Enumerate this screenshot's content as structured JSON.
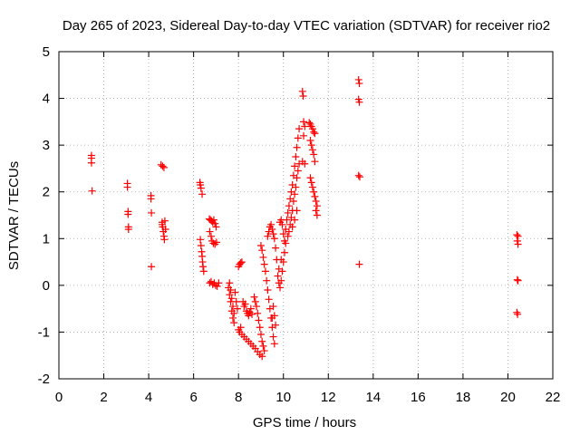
{
  "chart_data": {
    "type": "scatter",
    "title": "Day 265 of 2023, Sidereal Day-to-day VTEC variation (SDTVAR) for receiver rio2",
    "xlabel": "GPS time / hours",
    "ylabel": "SDTVAR / TECUs",
    "xlim": [
      0,
      22
    ],
    "ylim": [
      -2,
      5
    ],
    "xticks": [
      "0",
      "2",
      "4",
      "6",
      "8",
      "10",
      "12",
      "14",
      "16",
      "18",
      "20",
      "22"
    ],
    "yticks": [
      "-2",
      "-1",
      "0",
      "1",
      "2",
      "3",
      "4",
      "5"
    ],
    "grid": true,
    "marker": "+",
    "color": "#ff0000",
    "series": [
      {
        "name": "SDTVAR",
        "points": [
          [
            1.45,
            2.78
          ],
          [
            1.45,
            2.72
          ],
          [
            1.45,
            2.62
          ],
          [
            1.48,
            2.02
          ],
          [
            3.05,
            2.18
          ],
          [
            3.05,
            2.1
          ],
          [
            3.08,
            1.58
          ],
          [
            3.08,
            1.52
          ],
          [
            3.1,
            1.25
          ],
          [
            3.1,
            1.2
          ],
          [
            4.1,
            1.92
          ],
          [
            4.1,
            1.85
          ],
          [
            4.12,
            1.55
          ],
          [
            4.12,
            0.4
          ],
          [
            4.55,
            2.58
          ],
          [
            4.62,
            2.55
          ],
          [
            4.68,
            2.52
          ],
          [
            4.6,
            1.35
          ],
          [
            4.62,
            1.25
          ],
          [
            4.65,
            1.15
          ],
          [
            4.68,
            1.05
          ],
          [
            4.7,
            0.98
          ],
          [
            4.6,
            1.3
          ],
          [
            4.72,
            1.38
          ],
          [
            4.75,
            1.2
          ],
          [
            6.28,
            2.2
          ],
          [
            6.3,
            2.15
          ],
          [
            6.33,
            2.08
          ],
          [
            6.38,
            1.95
          ],
          [
            6.3,
            0.98
          ],
          [
            6.33,
            0.85
          ],
          [
            6.36,
            0.72
          ],
          [
            6.38,
            0.62
          ],
          [
            6.4,
            0.5
          ],
          [
            6.42,
            0.4
          ],
          [
            6.45,
            0.3
          ],
          [
            6.7,
            1.42
          ],
          [
            6.75,
            1.4
          ],
          [
            6.8,
            1.38
          ],
          [
            6.85,
            1.35
          ],
          [
            6.9,
            1.4
          ],
          [
            6.95,
            1.32
          ],
          [
            7.0,
            1.25
          ],
          [
            6.72,
            1.15
          ],
          [
            6.78,
            1.05
          ],
          [
            6.82,
            0.95
          ],
          [
            6.88,
            0.9
          ],
          [
            6.95,
            0.88
          ],
          [
            7.02,
            0.92
          ],
          [
            6.72,
            0.05
          ],
          [
            6.78,
            0.08
          ],
          [
            6.85,
            0.02
          ],
          [
            6.92,
            0.05
          ],
          [
            6.98,
            0.0
          ],
          [
            7.05,
            -0.02
          ],
          [
            7.12,
            0.05
          ],
          [
            7.55,
            -0.05
          ],
          [
            7.6,
            -0.2
          ],
          [
            7.65,
            -0.35
          ],
          [
            7.7,
            -0.55
          ],
          [
            7.75,
            -0.7
          ],
          [
            7.8,
            -0.8
          ],
          [
            7.6,
            0.05
          ],
          [
            7.65,
            -0.1
          ],
          [
            7.7,
            -0.28
          ],
          [
            7.75,
            -0.45
          ],
          [
            7.8,
            -0.6
          ],
          [
            7.85,
            -0.15
          ],
          [
            7.9,
            -0.35
          ],
          [
            7.95,
            -0.5
          ],
          [
            8.0,
            -0.95
          ],
          [
            8.05,
            -1.0
          ],
          [
            8.1,
            -0.9
          ],
          [
            8.0,
            0.4
          ],
          [
            8.05,
            0.45
          ],
          [
            8.1,
            0.48
          ],
          [
            8.15,
            0.5
          ],
          [
            8.2,
            -0.35
          ],
          [
            8.25,
            -0.45
          ],
          [
            8.3,
            -0.4
          ],
          [
            8.35,
            -0.55
          ],
          [
            8.4,
            -0.6
          ],
          [
            8.45,
            -0.65
          ],
          [
            8.5,
            -0.58
          ],
          [
            8.55,
            -0.5
          ],
          [
            8.6,
            -0.62
          ],
          [
            8.15,
            -1.05
          ],
          [
            8.25,
            -1.1
          ],
          [
            8.35,
            -1.15
          ],
          [
            8.45,
            -1.2
          ],
          [
            8.55,
            -1.25
          ],
          [
            8.65,
            -1.3
          ],
          [
            8.75,
            -1.35
          ],
          [
            8.85,
            -1.42
          ],
          [
            8.95,
            -1.48
          ],
          [
            9.05,
            -1.52
          ],
          [
            8.7,
            -0.25
          ],
          [
            8.75,
            -0.35
          ],
          [
            8.8,
            -0.45
          ],
          [
            8.85,
            -0.6
          ],
          [
            8.9,
            -0.75
          ],
          [
            8.95,
            -0.9
          ],
          [
            9.0,
            -1.05
          ],
          [
            9.05,
            -1.2
          ],
          [
            9.1,
            -1.3
          ],
          [
            9.15,
            -1.4
          ],
          [
            9.0,
            0.85
          ],
          [
            9.05,
            0.75
          ],
          [
            9.1,
            0.6
          ],
          [
            9.15,
            0.45
          ],
          [
            9.2,
            0.3
          ],
          [
            9.25,
            0.1
          ],
          [
            9.3,
            -0.1
          ],
          [
            9.35,
            -0.3
          ],
          [
            9.4,
            -0.5
          ],
          [
            9.45,
            -0.7
          ],
          [
            9.5,
            -0.9
          ],
          [
            9.55,
            -1.1
          ],
          [
            9.6,
            -1.25
          ],
          [
            9.3,
            1.05
          ],
          [
            9.35,
            1.15
          ],
          [
            9.4,
            1.25
          ],
          [
            9.45,
            1.3
          ],
          [
            9.5,
            1.2
          ],
          [
            9.55,
            1.1
          ],
          [
            9.6,
            1.0
          ],
          [
            9.65,
            0.8
          ],
          [
            9.7,
            0.55
          ],
          [
            9.6,
            -0.65
          ],
          [
            9.65,
            -0.85
          ],
          [
            9.55,
            -0.45
          ],
          [
            9.5,
            -0.7
          ],
          [
            9.75,
            0.2
          ],
          [
            9.8,
            0.05
          ],
          [
            9.85,
            -0.05
          ],
          [
            9.9,
            0.1
          ],
          [
            9.95,
            0.3
          ],
          [
            10.0,
            0.5
          ],
          [
            10.05,
            0.7
          ],
          [
            10.1,
            0.9
          ],
          [
            9.8,
            0.35
          ],
          [
            9.9,
            0.55
          ],
          [
            9.85,
            1.35
          ],
          [
            9.9,
            1.4
          ],
          [
            9.95,
            1.3
          ],
          [
            10.0,
            1.1
          ],
          [
            10.05,
            0.95
          ],
          [
            10.1,
            1.2
          ],
          [
            10.15,
            1.4
          ],
          [
            10.2,
            1.55
          ],
          [
            10.25,
            1.7
          ],
          [
            10.3,
            1.85
          ],
          [
            10.35,
            2.0
          ],
          [
            10.4,
            2.15
          ],
          [
            10.45,
            2.35
          ],
          [
            10.5,
            2.55
          ],
          [
            10.55,
            2.75
          ],
          [
            10.6,
            2.95
          ],
          [
            10.65,
            3.15
          ],
          [
            10.7,
            3.35
          ],
          [
            10.2,
            1.05
          ],
          [
            10.25,
            1.15
          ],
          [
            10.3,
            1.3
          ],
          [
            10.35,
            1.45
          ],
          [
            10.4,
            1.6
          ],
          [
            10.45,
            1.8
          ],
          [
            10.5,
            1.95
          ],
          [
            10.55,
            2.1
          ],
          [
            10.6,
            2.3
          ],
          [
            10.65,
            2.45
          ],
          [
            10.7,
            2.6
          ],
          [
            10.4,
            1.25
          ],
          [
            10.5,
            1.4
          ],
          [
            10.6,
            1.6
          ],
          [
            10.85,
            4.15
          ],
          [
            10.88,
            4.05
          ],
          [
            10.9,
            3.5
          ],
          [
            10.95,
            3.4
          ],
          [
            10.9,
            3.2
          ],
          [
            10.85,
            2.65
          ],
          [
            10.95,
            2.6
          ],
          [
            11.15,
            3.48
          ],
          [
            11.2,
            3.45
          ],
          [
            11.25,
            3.4
          ],
          [
            11.3,
            3.35
          ],
          [
            11.35,
            3.28
          ],
          [
            11.4,
            3.25
          ],
          [
            11.2,
            3.1
          ],
          [
            11.25,
            3.0
          ],
          [
            11.3,
            2.9
          ],
          [
            11.35,
            2.8
          ],
          [
            11.4,
            2.65
          ],
          [
            11.2,
            2.3
          ],
          [
            11.25,
            2.2
          ],
          [
            11.3,
            2.1
          ],
          [
            11.35,
            2.0
          ],
          [
            11.4,
            1.9
          ],
          [
            11.45,
            1.8
          ],
          [
            11.5,
            1.7
          ],
          [
            11.5,
            1.5
          ],
          [
            11.45,
            1.6
          ],
          [
            13.35,
            4.4
          ],
          [
            13.38,
            4.32
          ],
          [
            13.35,
            3.98
          ],
          [
            13.38,
            3.92
          ],
          [
            13.35,
            2.35
          ],
          [
            13.4,
            2.32
          ],
          [
            13.38,
            0.45
          ],
          [
            20.4,
            1.08
          ],
          [
            20.45,
            1.05
          ],
          [
            20.42,
            0.95
          ],
          [
            20.45,
            0.88
          ],
          [
            20.42,
            0.12
          ],
          [
            20.45,
            0.1
          ],
          [
            20.4,
            -0.58
          ],
          [
            20.43,
            -0.62
          ]
        ]
      }
    ]
  }
}
